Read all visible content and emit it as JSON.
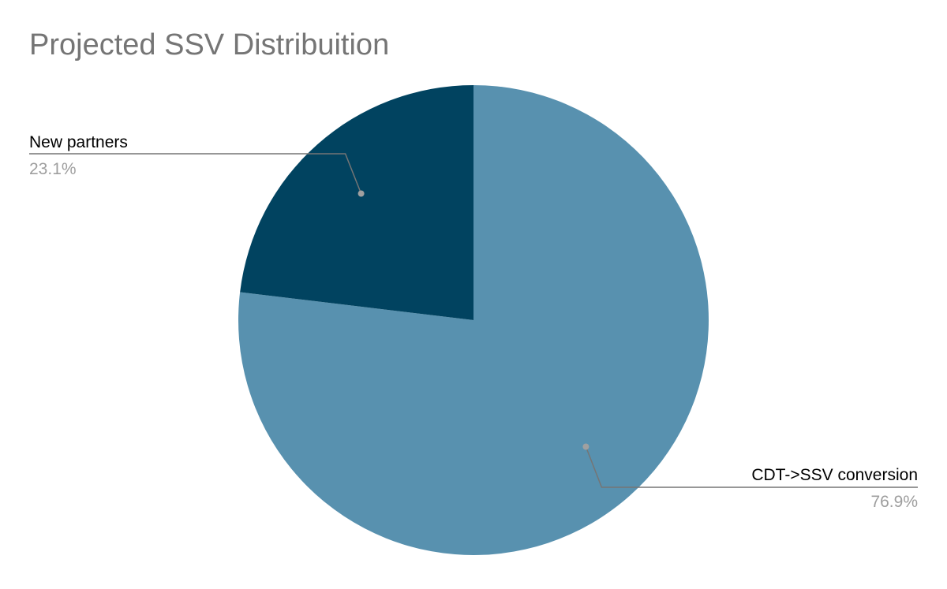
{
  "chart_data": {
    "type": "pie",
    "title": "Projected SSV Distribuition",
    "slices": [
      {
        "label": "CDT->SSV conversion",
        "value": 76.9,
        "pct_label": "76.9%",
        "color": "#5891af"
      },
      {
        "label": "New partners",
        "value": 23.1,
        "pct_label": "23.1%",
        "color": "#014360"
      }
    ],
    "legend": "none",
    "label_color": "#000000",
    "pct_color": "#9e9e9e",
    "leader_color": "#757575"
  }
}
